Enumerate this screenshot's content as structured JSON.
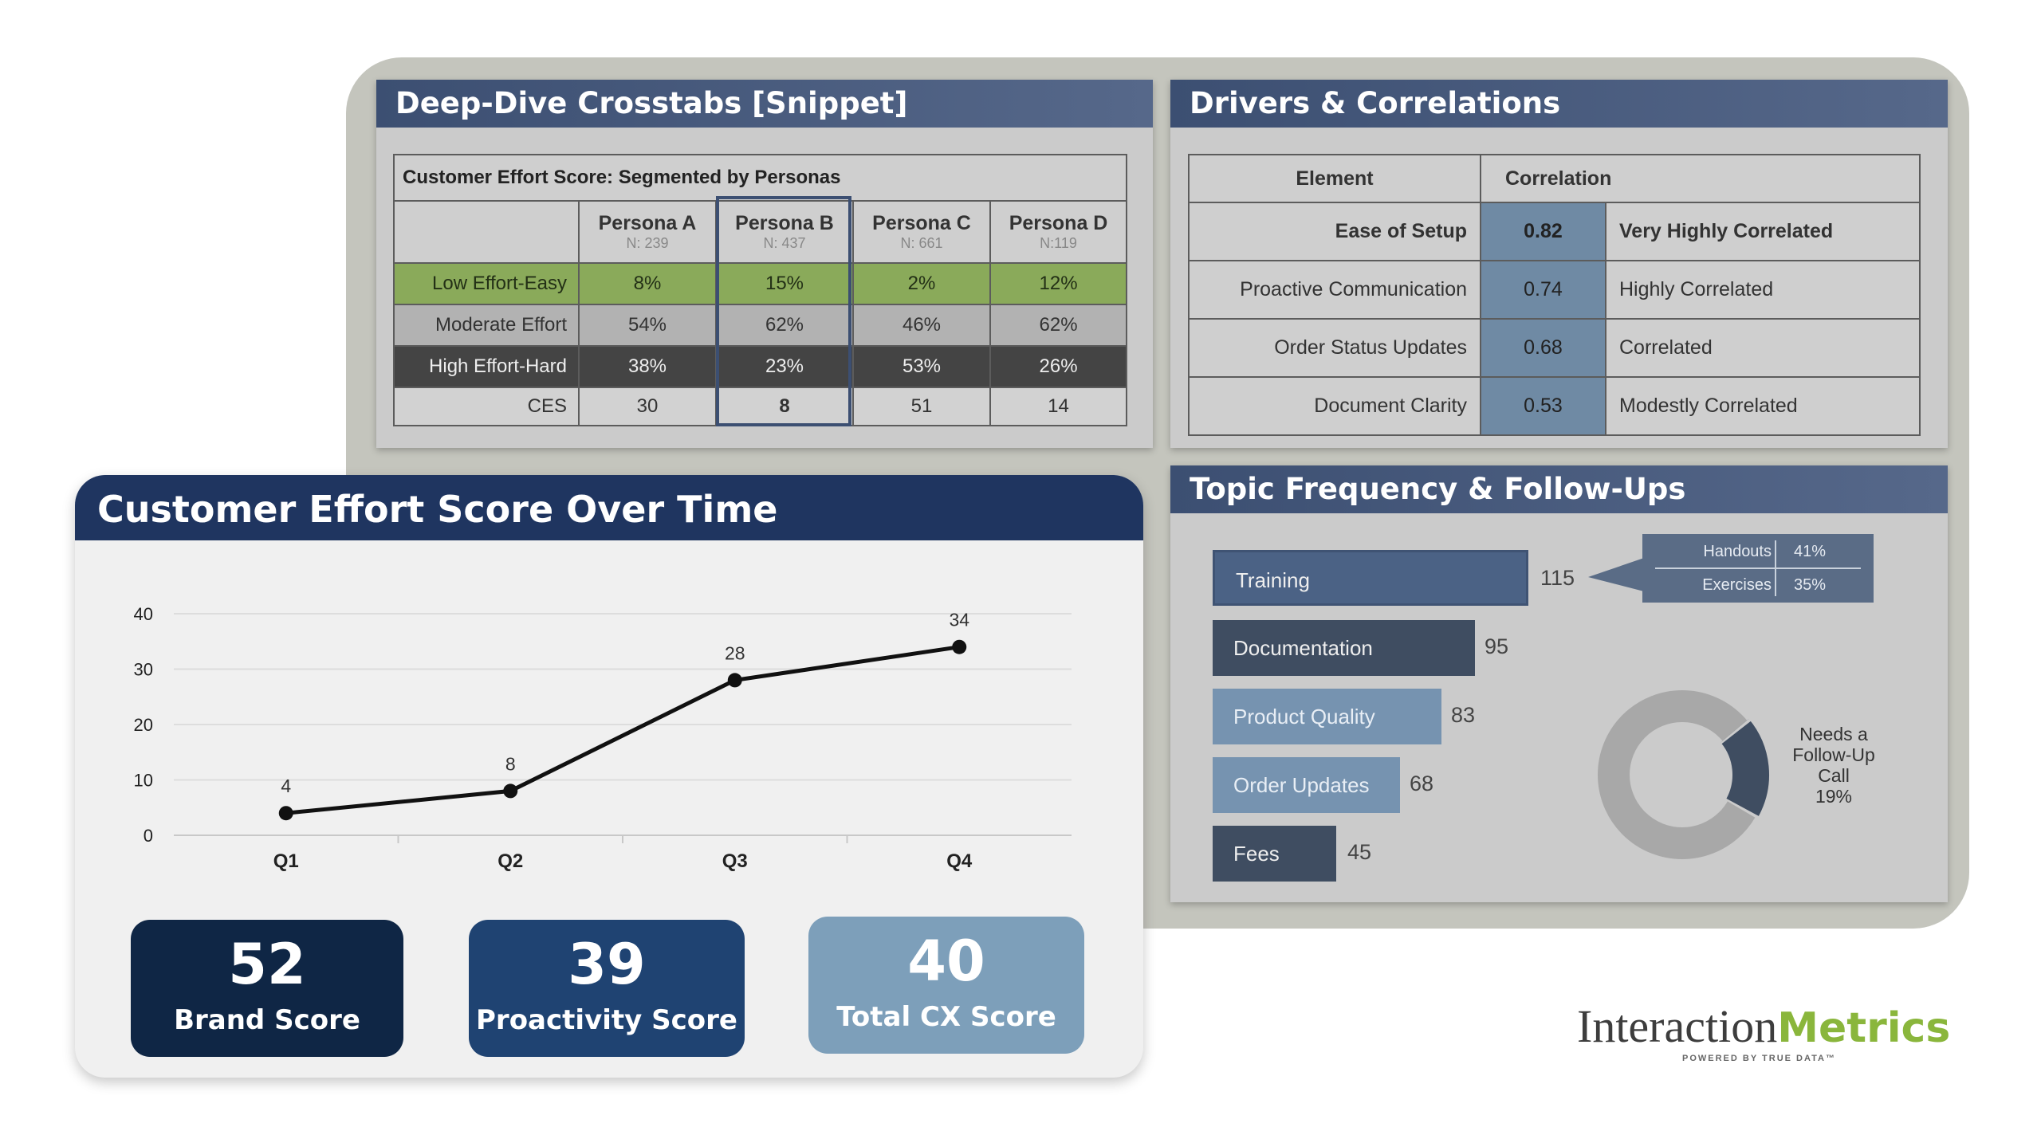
{
  "crosstabs": {
    "header": "Deep-Dive Crosstabs [Snippet]",
    "table_title": "Customer Effort Score: Segmented by Personas",
    "personas": [
      {
        "name": "Persona A",
        "n": "N: 239"
      },
      {
        "name": "Persona B",
        "n": "N: 437"
      },
      {
        "name": "Persona C",
        "n": "N: 661"
      },
      {
        "name": "Persona D",
        "n": "N:119"
      }
    ],
    "rows": [
      {
        "label": "Low Effort-Easy",
        "values": [
          "8%",
          "15%",
          "2%",
          "12%"
        ]
      },
      {
        "label": "Moderate Effort",
        "values": [
          "54%",
          "62%",
          "46%",
          "62%"
        ]
      },
      {
        "label": "High Effort-Hard",
        "values": [
          "38%",
          "23%",
          "53%",
          "26%"
        ]
      },
      {
        "label": "CES",
        "values": [
          "30",
          "8",
          "51",
          "14"
        ]
      }
    ],
    "colors": {
      "easy": "#8aaa5a",
      "moderate": "#b2b2b2",
      "hard": "#444444",
      "highlight": "#3c4f72"
    }
  },
  "drivers": {
    "header": "Drivers & Correlations",
    "col_element": "Element",
    "col_correlation": "Correlation",
    "rows": [
      {
        "element": "Ease of Setup",
        "value": "0.82",
        "label": "Very Highly Correlated"
      },
      {
        "element": "Proactive Communication",
        "value": "0.74",
        "label": "Highly Correlated"
      },
      {
        "element": "Order Status Updates",
        "value": "0.68",
        "label": "Correlated"
      },
      {
        "element": "Document Clarity",
        "value": "0.53",
        "label": "Modestly Correlated"
      }
    ]
  },
  "topics": {
    "header": "Topic Frequency & Follow-Ups",
    "bars": [
      {
        "label": "Training",
        "value": 115,
        "color": "#4b6285"
      },
      {
        "label": "Documentation",
        "value": 95,
        "color": "#3f4d61"
      },
      {
        "label": "Product Quality",
        "value": 83,
        "color": "#7693b0"
      },
      {
        "label": "Order Updates",
        "value": 68,
        "color": "#7693b0"
      },
      {
        "label": "Fees",
        "value": 45,
        "color": "#3f4d61"
      }
    ],
    "training_breakdown": [
      {
        "label": "Handouts",
        "value": "41%"
      },
      {
        "label": "Exercises",
        "value": "35%"
      }
    ],
    "donut": {
      "label": "Needs a Follow-Up Call",
      "line1": "Needs a",
      "line2": "Follow-Up",
      "line3": "Call",
      "pct_text": "19%",
      "fraction": 0.19,
      "accent": "#3f4d61",
      "rest": "#a8a8a8"
    }
  },
  "ces_card": {
    "title": "Customer Effort Score Over Time",
    "tiles": [
      {
        "value": "52",
        "label": "Brand Score",
        "color": "#0f2645"
      },
      {
        "value": "39",
        "label": "Proactivity Score",
        "color": "#1f4372"
      },
      {
        "value": "40",
        "label": "Total CX Score",
        "color": "#7d9fba"
      }
    ]
  },
  "chart_data": {
    "type": "line",
    "title": "Customer Effort Score Over Time",
    "categories": [
      "Q1",
      "Q2",
      "Q3",
      "Q4"
    ],
    "values": [
      4,
      8,
      28,
      34
    ],
    "ylim": [
      0,
      40
    ],
    "yticks": [
      0,
      10,
      20,
      30,
      40
    ],
    "grid": true,
    "xlabel": "",
    "ylabel": ""
  },
  "logo": {
    "part1": "Interaction",
    "part2": "Metrics",
    "tagline": "POWERED BY TRUE DATA™"
  }
}
